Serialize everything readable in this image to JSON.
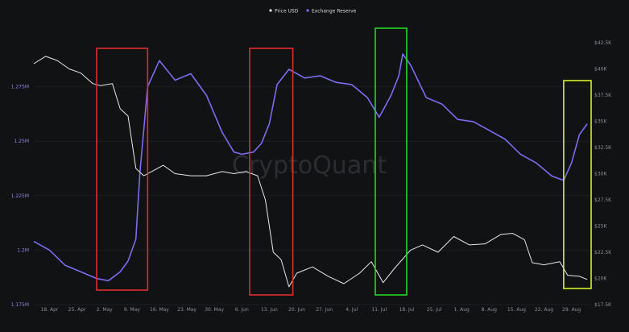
{
  "chart_data": {
    "type": "line",
    "title": "",
    "watermark": "CryptoQuant",
    "legend": {
      "placement": "top-center",
      "items": [
        {
          "label": "Price USD",
          "color": "#e8e8e8"
        },
        {
          "label": "Exchange Reserve",
          "color": "#7b6cf0"
        }
      ]
    },
    "x_tick_labels": [
      "18. Apr",
      "25. Apr",
      "2. May",
      "9. May",
      "16. May",
      "23. May",
      "30. May",
      "6. Jun",
      "13. Jun",
      "20. Jun",
      "27. Jun",
      "4. Jul",
      "11. Jul",
      "18. Jul",
      "25. Jul",
      "1. Aug",
      "8. Aug",
      "15. Aug",
      "22. Aug",
      "29. Aug"
    ],
    "x_start": "2022-04-14",
    "x_end": "2022-09-03",
    "y_left": {
      "range": [
        1175000,
        1300000
      ],
      "tick_values": [
        1175000,
        1200000,
        1225000,
        1250000,
        1275000
      ],
      "tick_labels": [
        "1.175M",
        "1.2M",
        "1.225M",
        "1.25M",
        "1.275M"
      ],
      "color": "#8d86e6"
    },
    "y_right": {
      "range": [
        17500,
        43500
      ],
      "tick_values": [
        17500,
        20000,
        22500,
        25000,
        27500,
        30000,
        32500,
        35000,
        37500,
        40000,
        42500
      ],
      "tick_labels": [
        "$17.5K",
        "$20K",
        "$22.5K",
        "$25K",
        "$27.5K",
        "$30K",
        "$32.5K",
        "$35K",
        "$37.5K",
        "$40K",
        "$42.5K"
      ]
    },
    "series": [
      {
        "name": "Exchange Reserve",
        "axis": "left",
        "color": "#7b6cf0",
        "x": [
          "2022-04-14",
          "2022-04-18",
          "2022-04-22",
          "2022-04-26",
          "2022-04-30",
          "2022-05-03",
          "2022-05-06",
          "2022-05-08",
          "2022-05-10",
          "2022-05-11",
          "2022-05-13",
          "2022-05-16",
          "2022-05-20",
          "2022-05-24",
          "2022-05-28",
          "2022-06-01",
          "2022-06-04",
          "2022-06-06",
          "2022-06-09",
          "2022-06-11",
          "2022-06-13",
          "2022-06-15",
          "2022-06-18",
          "2022-06-22",
          "2022-06-26",
          "2022-06-30",
          "2022-07-04",
          "2022-07-08",
          "2022-07-11",
          "2022-07-14",
          "2022-07-16",
          "2022-07-17",
          "2022-07-19",
          "2022-07-23",
          "2022-07-27",
          "2022-07-31",
          "2022-08-04",
          "2022-08-08",
          "2022-08-12",
          "2022-08-16",
          "2022-08-20",
          "2022-08-24",
          "2022-08-27",
          "2022-08-29",
          "2022-08-31",
          "2022-09-02"
        ],
        "values": [
          1204000,
          1200000,
          1193000,
          1190000,
          1187000,
          1186000,
          1190000,
          1195000,
          1205000,
          1235000,
          1275000,
          1287000,
          1278000,
          1281000,
          1271000,
          1254000,
          1245000,
          1244000,
          1245000,
          1249000,
          1258000,
          1276000,
          1283000,
          1279000,
          1280000,
          1277000,
          1276000,
          1270000,
          1261000,
          1271000,
          1280000,
          1290000,
          1285000,
          1270000,
          1267000,
          1260000,
          1259000,
          1255000,
          1251000,
          1244000,
          1240000,
          1234000,
          1232000,
          1240000,
          1253000,
          1258000
        ]
      },
      {
        "name": "Price USD",
        "axis": "right",
        "color": "#e8e8e8",
        "x": [
          "2022-04-14",
          "2022-04-17",
          "2022-04-20",
          "2022-04-23",
          "2022-04-26",
          "2022-04-29",
          "2022-05-01",
          "2022-05-04",
          "2022-05-06",
          "2022-05-08",
          "2022-05-10",
          "2022-05-12",
          "2022-05-14",
          "2022-05-17",
          "2022-05-20",
          "2022-05-24",
          "2022-05-28",
          "2022-06-01",
          "2022-06-04",
          "2022-06-07",
          "2022-06-10",
          "2022-06-12",
          "2022-06-14",
          "2022-06-16",
          "2022-06-18",
          "2022-06-20",
          "2022-06-24",
          "2022-06-28",
          "2022-07-02",
          "2022-07-06",
          "2022-07-09",
          "2022-07-12",
          "2022-07-15",
          "2022-07-19",
          "2022-07-22",
          "2022-07-26",
          "2022-07-30",
          "2022-08-03",
          "2022-08-07",
          "2022-08-11",
          "2022-08-14",
          "2022-08-17",
          "2022-08-19",
          "2022-08-22",
          "2022-08-26",
          "2022-08-28",
          "2022-08-31",
          "2022-09-02"
        ],
        "values": [
          40500,
          41200,
          40800,
          40000,
          39600,
          38600,
          38400,
          38600,
          36200,
          35500,
          30500,
          29800,
          30200,
          30800,
          30000,
          29800,
          29800,
          30200,
          30000,
          30200,
          29800,
          27500,
          22500,
          21800,
          19200,
          20500,
          21100,
          20200,
          19500,
          20500,
          21600,
          19600,
          21000,
          22700,
          23200,
          22500,
          24000,
          23200,
          23300,
          24200,
          24300,
          23700,
          21500,
          21300,
          21600,
          20300,
          20200,
          19900
        ]
      }
    ],
    "annotations": [
      {
        "type": "box",
        "color": "#e22b2b",
        "x_start": "2022-04-30",
        "x_end": "2022-05-13"
      },
      {
        "type": "box",
        "color": "#e22b2b",
        "x_start": "2022-06-08",
        "x_end": "2022-06-19"
      },
      {
        "type": "box",
        "color": "#27d827",
        "x_start": "2022-07-10",
        "x_end": "2022-07-18"
      },
      {
        "type": "box",
        "color": "#d6f02a",
        "x_start": "2022-08-27",
        "x_end": "2022-09-03"
      }
    ]
  }
}
